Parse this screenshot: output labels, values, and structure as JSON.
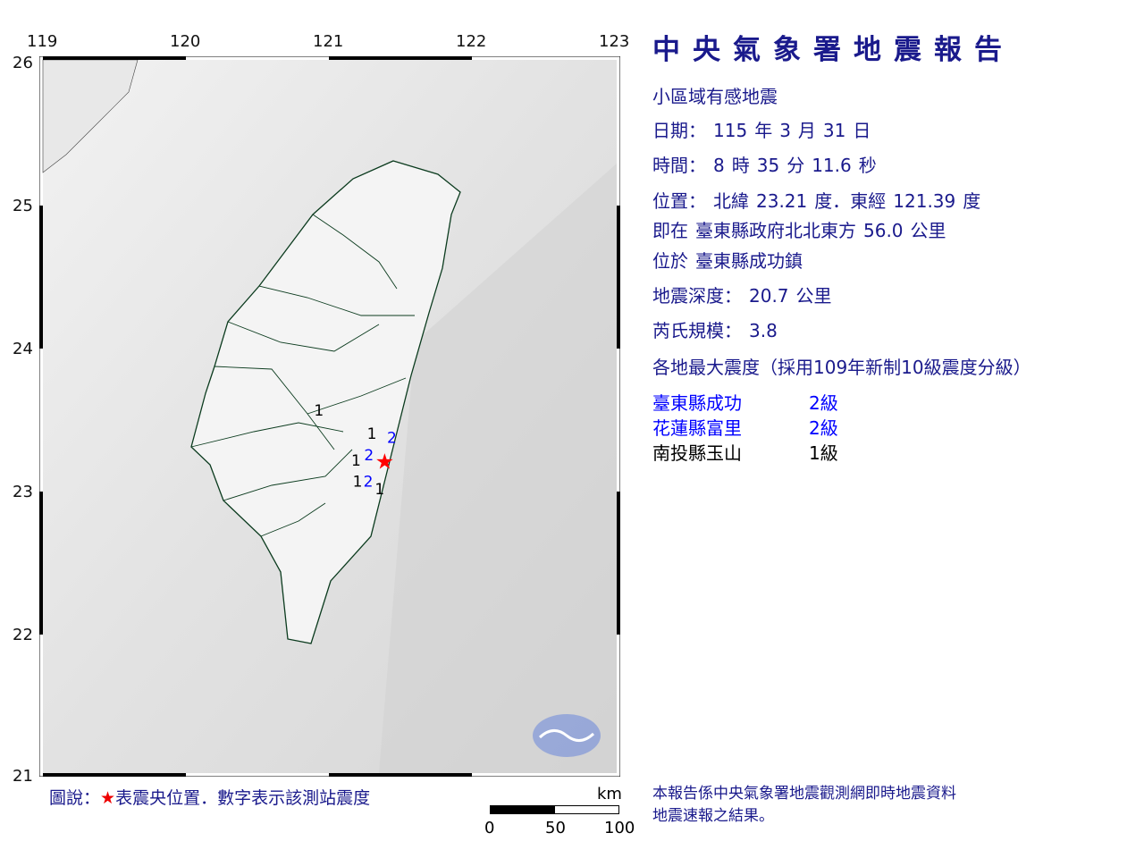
{
  "header": {
    "title": "中央氣象署地震報告"
  },
  "report": {
    "type": "小區域有感地震",
    "date_label": "日期：",
    "date": [
      "115",
      "年",
      "3",
      "月",
      "31",
      "日"
    ],
    "time_label": "時間：",
    "time": [
      "8",
      "時",
      "35",
      "分",
      "11.6",
      "秒"
    ],
    "location_label": "位置：",
    "location": [
      "北緯",
      "23.21",
      "度．東經",
      "121.39",
      "度"
    ],
    "relative_label": "即在",
    "relative": [
      "臺東縣政府北北東方",
      "56.0",
      "公里"
    ],
    "town_label": "位於",
    "town": "臺東縣成功鎮",
    "depth_label": "地震深度：",
    "depth": "20.7",
    "depth_unit": "公里",
    "magnitude_label": "芮氏規模：",
    "magnitude": "3.8",
    "intensity_heading": "各地最大震度（採用109年新制10級震度分級）"
  },
  "stations": [
    {
      "name": "臺東縣成功",
      "level": "2級",
      "color": "#0000ff"
    },
    {
      "name": "花蓮縣富里",
      "level": "2級",
      "color": "#0000ff"
    },
    {
      "name": "南投縣玉山",
      "level": "1級",
      "color": "#000000"
    }
  ],
  "map": {
    "lon_ticks": [
      "119",
      "120",
      "121",
      "122",
      "123"
    ],
    "lat_ticks": [
      "26",
      "25",
      "24",
      "23",
      "22",
      "21"
    ],
    "epicenter": {
      "lat": 23.21,
      "lon": 121.39,
      "symbol": "★",
      "color": "#ff0000"
    },
    "station_marks": [
      {
        "label": "1",
        "lat": 23.53,
        "lon": 120.93,
        "color": "#000000"
      },
      {
        "label": "1",
        "lat": 23.37,
        "lon": 121.3,
        "color": "#000000"
      },
      {
        "label": "2",
        "lat": 23.34,
        "lon": 121.44,
        "color": "#0000ff"
      },
      {
        "label": "2",
        "lat": 23.22,
        "lon": 121.28,
        "color": "#0000ff"
      },
      {
        "label": "1",
        "lat": 23.18,
        "lon": 121.19,
        "color": "#000000"
      },
      {
        "label": "1",
        "lat": 23.11,
        "lon": 121.2,
        "color": "#000000"
      },
      {
        "label": "2",
        "lat": 23.11,
        "lon": 121.35,
        "color": "#0000ff"
      },
      {
        "label": "1",
        "lat": 22.98,
        "lon": 121.28,
        "color": "#000000"
      }
    ],
    "scale": {
      "unit": "km",
      "labels": [
        "0",
        "50",
        "100"
      ]
    }
  },
  "legend": {
    "prefix": "圖說：",
    "star": "★",
    "text": "表震央位置．數字表示該測站震度"
  },
  "footer": {
    "line1": "本報告係中央氣象署地震觀測網即時地震資料",
    "line2": "地震速報之結果。"
  }
}
